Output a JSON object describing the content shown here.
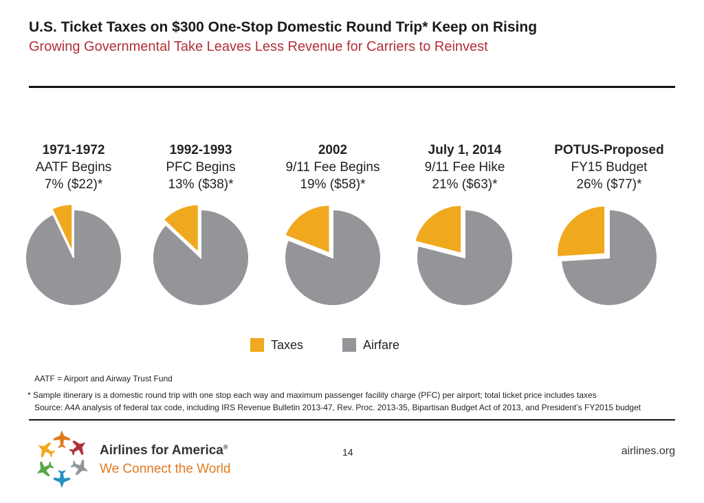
{
  "header": {
    "title": "U.S. Ticket Taxes on $300 One-Stop Domestic Round Trip* Keep on Rising",
    "subtitle": "Growing Governmental Take Leaves Less Revenue for Carriers to Reinvest"
  },
  "colors": {
    "taxes": "#f0a81e",
    "airfare": "#939598",
    "subtitle": "#b0303a",
    "tagline": "#e07a1f"
  },
  "chart_data": {
    "type": "pie",
    "series_names": [
      "Taxes",
      "Airfare"
    ],
    "pies": [
      {
        "period": "1971-1972",
        "event": "AATF Begins",
        "share_label": "7% ($22)*",
        "taxes_pct": 7,
        "airfare_pct": 93
      },
      {
        "period": "1992-1993",
        "event": "PFC Begins",
        "share_label": "13% ($38)*",
        "taxes_pct": 13,
        "airfare_pct": 87
      },
      {
        "period": "2002",
        "event": "9/11 Fee Begins",
        "share_label": "19% ($58)*",
        "taxes_pct": 19,
        "airfare_pct": 81
      },
      {
        "period": "July 1, 2014",
        "event": "9/11 Fee Hike",
        "share_label": "21% ($63)*",
        "taxes_pct": 21,
        "airfare_pct": 79
      },
      {
        "period": "POTUS-Proposed",
        "event": "FY15 Budget",
        "share_label": "26% ($77)*",
        "taxes_pct": 26,
        "airfare_pct": 74
      }
    ],
    "legend": {
      "placement": "bottom-center"
    }
  },
  "footnotes": {
    "aatf": "AATF = Airport and Airway Trust Fund",
    "star": "* Sample itinerary is a domestic round trip with one stop each way and maximum passenger facility charge (PFC) per airport; total ticket price includes taxes",
    "source": "Source: A4A analysis of federal tax code, including IRS Revenue Bulletin 2013-47, Rev. Proc. 2013-35, Bipartisan Budget Act of 2013, and President’s FY2015 budget"
  },
  "footer": {
    "org_name": "Airlines for America",
    "trademark": "®",
    "tagline": "We Connect the World",
    "page_number": "14",
    "website": "airlines.org",
    "logo_icon": "airplanes-logo-icon"
  }
}
